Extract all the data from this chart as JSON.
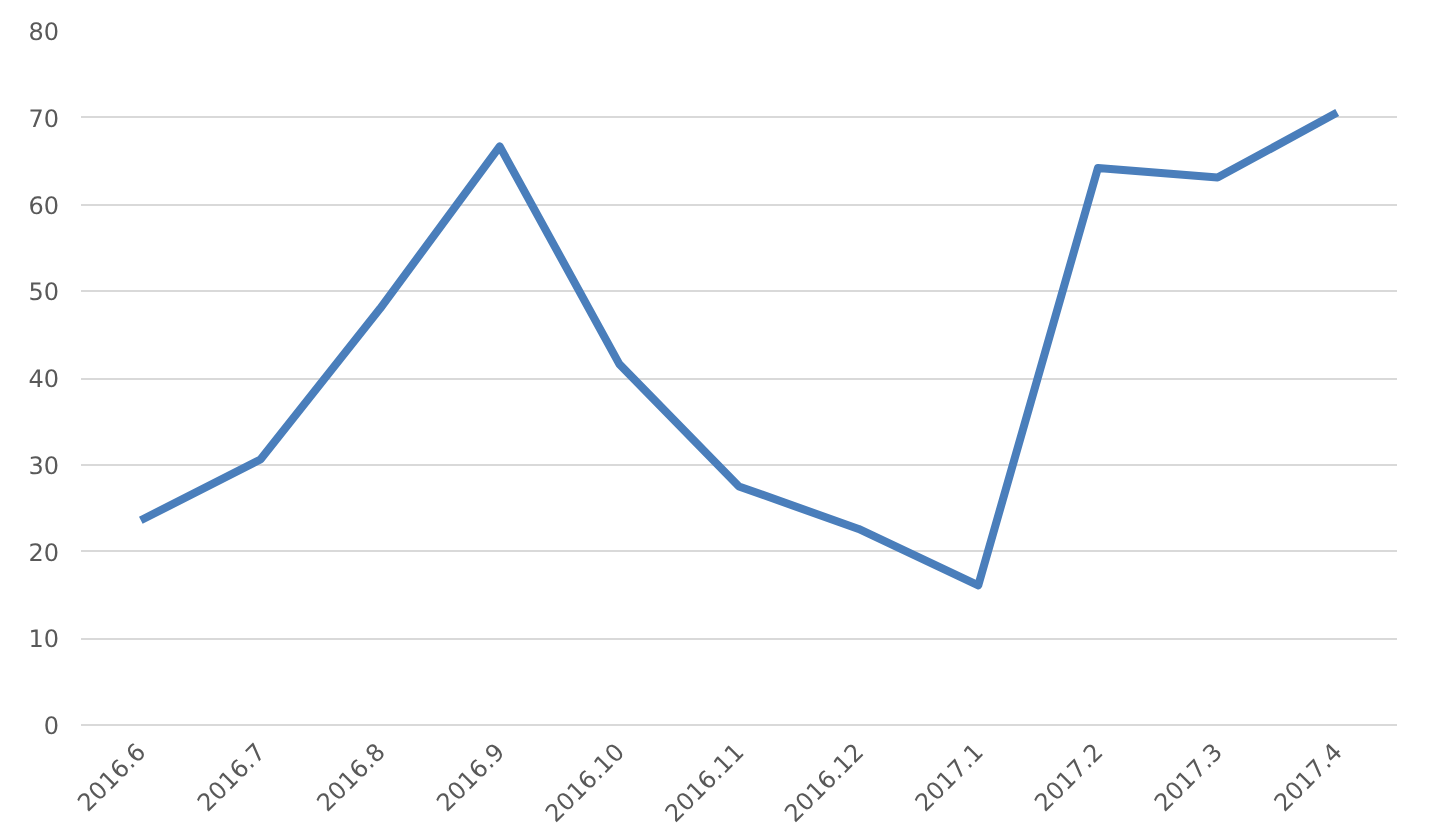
{
  "chart_data": {
    "type": "line",
    "categories": [
      "2016.6",
      "2016.7",
      "2016.8",
      "2016.9",
      "2016.10",
      "2016.11",
      "2016.12",
      "2017.1",
      "2017.2",
      "2017.3",
      "2017.4"
    ],
    "series": [
      {
        "color": "#4a7ebb",
        "values": [
          23.6,
          30.6,
          48,
          66.7,
          41.6,
          27.5,
          22.6,
          16.1,
          64.2,
          63.1,
          70.6
        ]
      }
    ],
    "ylim": [
      0,
      80
    ],
    "yticks": [
      0,
      10,
      20,
      30,
      40,
      50,
      60,
      70,
      80
    ],
    "grid": "y",
    "marker": "none",
    "line_style": "solid"
  }
}
